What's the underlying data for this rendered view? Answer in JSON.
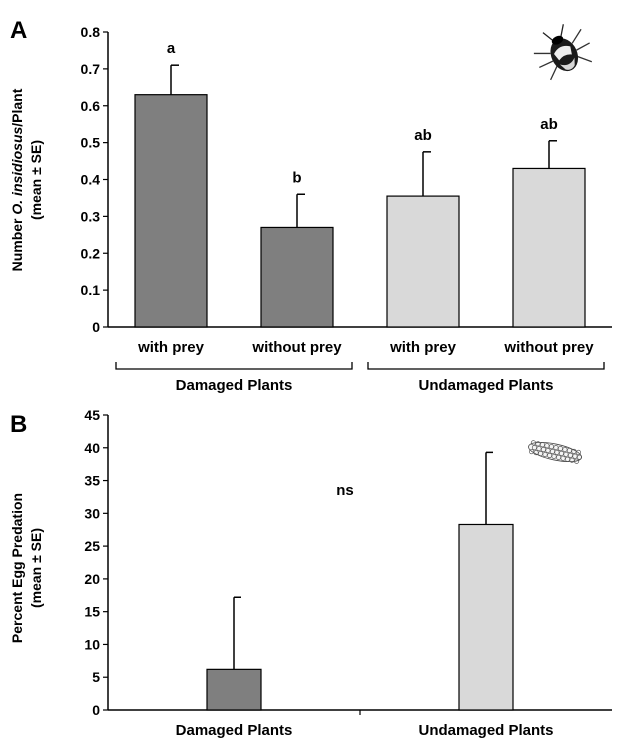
{
  "colors": {
    "dark_bar": "#7f7f7f",
    "light_bar": "#d9d9d9",
    "axis": "#000000"
  },
  "chart_data": [
    {
      "type": "bar",
      "panel": "A",
      "ylabel_parts": [
        "Number ",
        "O. insidiosus",
        "/Plant"
      ],
      "ylabel_line2": "(mean ± SE)",
      "ylim": [
        0,
        0.8
      ],
      "yticks": [
        "0",
        "0.1",
        "0.2",
        "0.3",
        "0.4",
        "0.5",
        "0.6",
        "0.7",
        "0.8"
      ],
      "categories": [
        "with prey",
        "without prey",
        "with prey",
        "without prey"
      ],
      "groups": [
        "Damaged Plants",
        "Undamaged Plants"
      ],
      "values": [
        0.63,
        0.27,
        0.355,
        0.43
      ],
      "errors": [
        0.08,
        0.09,
        0.12,
        0.075
      ],
      "significance": [
        "a",
        "b",
        "ab",
        "ab"
      ],
      "bar_colors": [
        "dark",
        "dark",
        "light",
        "light"
      ],
      "icon": "insect-icon"
    },
    {
      "type": "bar",
      "panel": "B",
      "ylabel_line1": "Percent Egg Predation",
      "ylabel_line2": "(mean ± SE)",
      "ylim": [
        0,
        45
      ],
      "yticks": [
        "0",
        "5",
        "10",
        "15",
        "20",
        "25",
        "30",
        "35",
        "40",
        "45"
      ],
      "categories": [
        "Damaged Plants",
        "Undamaged Plants"
      ],
      "values": [
        6.2,
        28.3
      ],
      "errors": [
        11.0,
        11.0
      ],
      "annotation": "ns",
      "bar_colors": [
        "dark",
        "light"
      ],
      "icon": "egg-cluster-icon"
    }
  ]
}
